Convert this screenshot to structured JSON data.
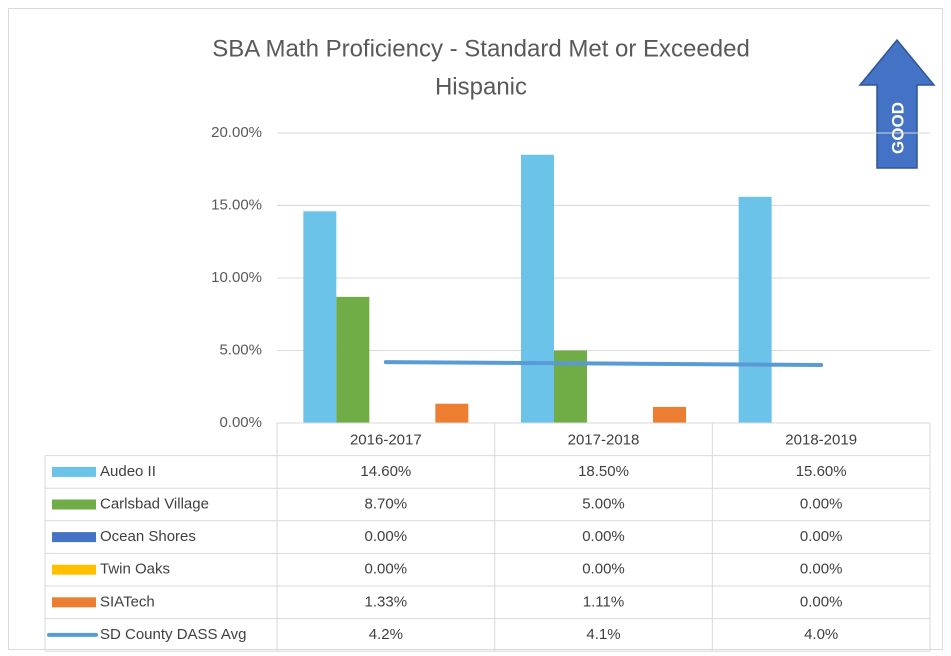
{
  "chart_data": {
    "type": "bar",
    "title": "SBA Math Proficiency - Standard Met or Exceeded",
    "subtitle": "Hispanic",
    "annotation": "GOOD",
    "categories": [
      "2016-2017",
      "2017-2018",
      "2018-2019"
    ],
    "ylim": [
      0,
      20
    ],
    "yticks": [
      {
        "value": 0,
        "label": "0.00%"
      },
      {
        "value": 5,
        "label": "5.00%"
      },
      {
        "value": 10,
        "label": "10.00%"
      },
      {
        "value": 15,
        "label": "15.00%"
      },
      {
        "value": 20,
        "label": "20.00%"
      }
    ],
    "series": [
      {
        "name": "Audeo II",
        "color": "#6cc3ea",
        "values": [
          14.6,
          18.5,
          15.6
        ],
        "value_labels": [
          "14.60%",
          "18.50%",
          "15.60%"
        ]
      },
      {
        "name": "Carlsbad Village",
        "color": "#70ad47",
        "values": [
          8.7,
          5,
          0
        ],
        "value_labels": [
          "8.70%",
          "5.00%",
          "0.00%"
        ]
      },
      {
        "name": "Ocean Shores",
        "color": "#4472c4",
        "values": [
          0,
          0,
          0
        ],
        "value_labels": [
          "0.00%",
          "0.00%",
          "0.00%"
        ]
      },
      {
        "name": "Twin Oaks",
        "color": "#ffc000",
        "values": [
          0,
          0,
          0
        ],
        "value_labels": [
          "0.00%",
          "0.00%",
          "0.00%"
        ]
      },
      {
        "name": "SIATech",
        "color": "#ed7d31",
        "values": [
          1.33,
          1.11,
          0
        ],
        "value_labels": [
          "1.33%",
          "1.11%",
          "0.00%"
        ]
      },
      {
        "name": "SD County DASS Avg",
        "type": "line",
        "color": "#5b9bd5",
        "values": [
          4.2,
          4.1,
          4.0
        ],
        "value_labels": [
          "4.2%",
          "4.1%",
          "4.0%"
        ]
      }
    ]
  }
}
